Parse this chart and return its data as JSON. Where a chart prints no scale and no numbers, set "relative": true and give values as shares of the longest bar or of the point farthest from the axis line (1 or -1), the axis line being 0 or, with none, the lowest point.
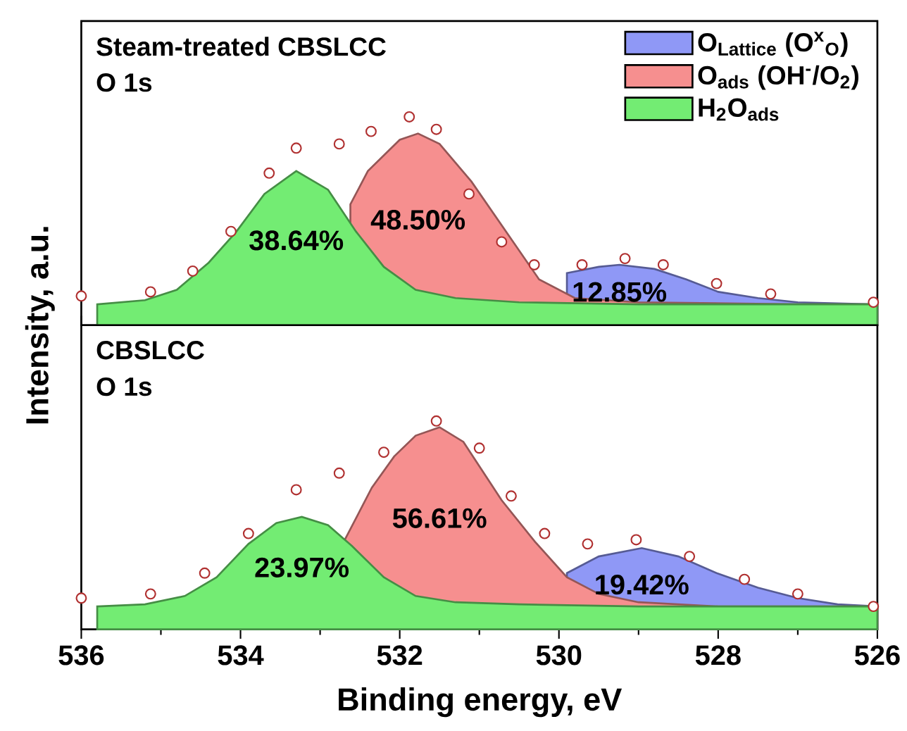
{
  "chart_data": [
    {
      "type": "area",
      "title": "Steam-treated CBSLCC",
      "subtitle": "O 1s",
      "ylabel": "Intensity, a.u.",
      "relative": true,
      "xlim": [
        536,
        526
      ],
      "xticks": [
        536,
        {
          "value": 535,
          "label": null
        },
        534,
        {
          "value": 533,
          "label": null
        },
        532,
        {
          "value": 531,
          "label": null
        },
        530,
        {
          "value": 529,
          "label": null
        },
        528,
        {
          "value": 527,
          "label": null
        },
        526
      ],
      "tick_labels": false,
      "legend": "top right",
      "series": [
        {
          "type": "scatter",
          "marker": "circle",
          "color": "#b03030",
          "x": [
            536.0,
            535.13,
            534.6,
            534.12,
            533.64,
            533.3,
            532.76,
            532.36,
            531.88,
            531.54,
            531.13,
            530.72,
            530.31,
            529.71,
            529.17,
            528.69,
            528.02,
            527.34,
            526.05
          ],
          "values": [
            0.14,
            0.16,
            0.26,
            0.45,
            0.73,
            0.85,
            0.87,
            0.93,
            1.0,
            0.94,
            0.63,
            0.4,
            0.29,
            0.29,
            0.32,
            0.29,
            0.2,
            0.15,
            0.11
          ]
        },
        {
          "name": "O$_{Lattice}$ (O$^{x}$$_{O}$)",
          "color": "#8f98f6",
          "x": [
            529.9,
            529.5,
            529.24,
            528.8,
            528.4,
            528.0,
            527.5,
            527.0,
            526.0
          ],
          "values": [
            0.25,
            0.28,
            0.29,
            0.27,
            0.22,
            0.16,
            0.13,
            0.11,
            0.1
          ]
        },
        {
          "name": "O$_{ads}$ (OH$^{-}$/O$_{2}$)",
          "color": "#f68f8f",
          "x": [
            532.62,
            532.4,
            532.0,
            531.77,
            531.5,
            531.1,
            530.72,
            530.25,
            529.8,
            529.0,
            527.0,
            526.0
          ],
          "values": [
            0.58,
            0.74,
            0.89,
            0.92,
            0.87,
            0.69,
            0.48,
            0.22,
            0.13,
            0.11,
            0.1,
            0.1
          ]
        },
        {
          "name": "H$_{2}$O$_{ads}$",
          "color": "#73ec73",
          "x": [
            535.8,
            535.2,
            534.8,
            534.4,
            534.05,
            533.7,
            533.3,
            532.9,
            532.55,
            532.2,
            531.8,
            531.3,
            530.5,
            529.0,
            526.0
          ],
          "values": [
            0.1,
            0.12,
            0.17,
            0.3,
            0.45,
            0.63,
            0.74,
            0.65,
            0.45,
            0.28,
            0.17,
            0.13,
            0.11,
            0.1,
            0.1
          ]
        }
      ],
      "annotations": [
        "12.85%",
        "48.50%",
        "38.64%"
      ]
    },
    {
      "type": "area",
      "title": "CBSLCC",
      "subtitle": "O 1s",
      "xlabel": "Binding energy, eV",
      "relative": true,
      "xlim": [
        536,
        526
      ],
      "xticks": [
        536,
        {
          "value": 535,
          "label": null
        },
        534,
        {
          "value": 533,
          "label": null
        },
        532,
        {
          "value": 531,
          "label": null
        },
        530,
        {
          "value": 529,
          "label": null
        },
        528,
        {
          "value": 527,
          "label": null
        },
        526
      ],
      "tick_labels": "x",
      "series": [
        {
          "type": "scatter",
          "marker": "circle",
          "color": "#b03030",
          "x": [
            536.0,
            535.13,
            534.45,
            533.9,
            533.3,
            532.76,
            532.2,
            531.54,
            531.0,
            530.6,
            530.18,
            529.64,
            529.03,
            528.36,
            527.67,
            527.0,
            526.05
          ],
          "values": [
            0.15,
            0.17,
            0.27,
            0.46,
            0.67,
            0.75,
            0.85,
            1.0,
            0.87,
            0.64,
            0.46,
            0.41,
            0.43,
            0.35,
            0.24,
            0.17,
            0.11
          ]
        },
        {
          "color": "#8f98f6",
          "x": [
            529.9,
            529.5,
            528.96,
            528.5,
            528.02,
            527.5,
            527.0,
            526.5,
            526.0
          ],
          "values": [
            0.27,
            0.35,
            0.39,
            0.35,
            0.27,
            0.2,
            0.15,
            0.12,
            0.11
          ]
        },
        {
          "color": "#f68f8f",
          "x": [
            532.69,
            532.35,
            532.07,
            531.8,
            531.5,
            531.2,
            530.72,
            530.3,
            529.9,
            529.5,
            529.0,
            528.0,
            526.0
          ],
          "values": [
            0.43,
            0.68,
            0.83,
            0.93,
            0.97,
            0.9,
            0.62,
            0.42,
            0.25,
            0.17,
            0.13,
            0.11,
            0.11
          ]
        },
        {
          "color": "#73ec73",
          "x": [
            535.8,
            535.2,
            534.7,
            534.3,
            533.9,
            533.55,
            533.23,
            532.9,
            532.6,
            532.2,
            531.8,
            531.3,
            530.5,
            529.0,
            526.0
          ],
          "values": [
            0.11,
            0.12,
            0.16,
            0.25,
            0.41,
            0.51,
            0.54,
            0.5,
            0.4,
            0.25,
            0.16,
            0.13,
            0.12,
            0.11,
            0.11
          ]
        }
      ],
      "annotations": [
        "19.42%",
        "56.61%",
        "23.97%"
      ]
    }
  ]
}
